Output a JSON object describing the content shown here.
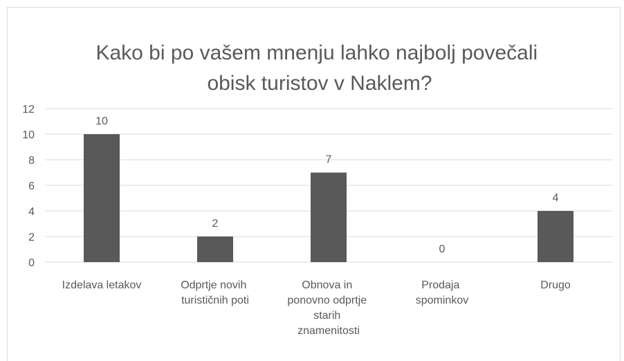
{
  "chart_data": {
    "type": "bar",
    "title": "Kako bi po vašem mnenju lahko najbolj povečali obisk turistov v Naklem?",
    "categories": [
      "Izdelava letakov",
      "Odprtje novih turističnih poti",
      "Obnova in ponovno odprtje starih znamenitosti",
      "Prodaja spominkov",
      "Drugo"
    ],
    "values": [
      10,
      2,
      7,
      0,
      4
    ],
    "color": "#595959",
    "ylim": [
      0,
      12
    ],
    "yticks": [
      0,
      2,
      4,
      6,
      8,
      10,
      12
    ],
    "grid": true
  }
}
